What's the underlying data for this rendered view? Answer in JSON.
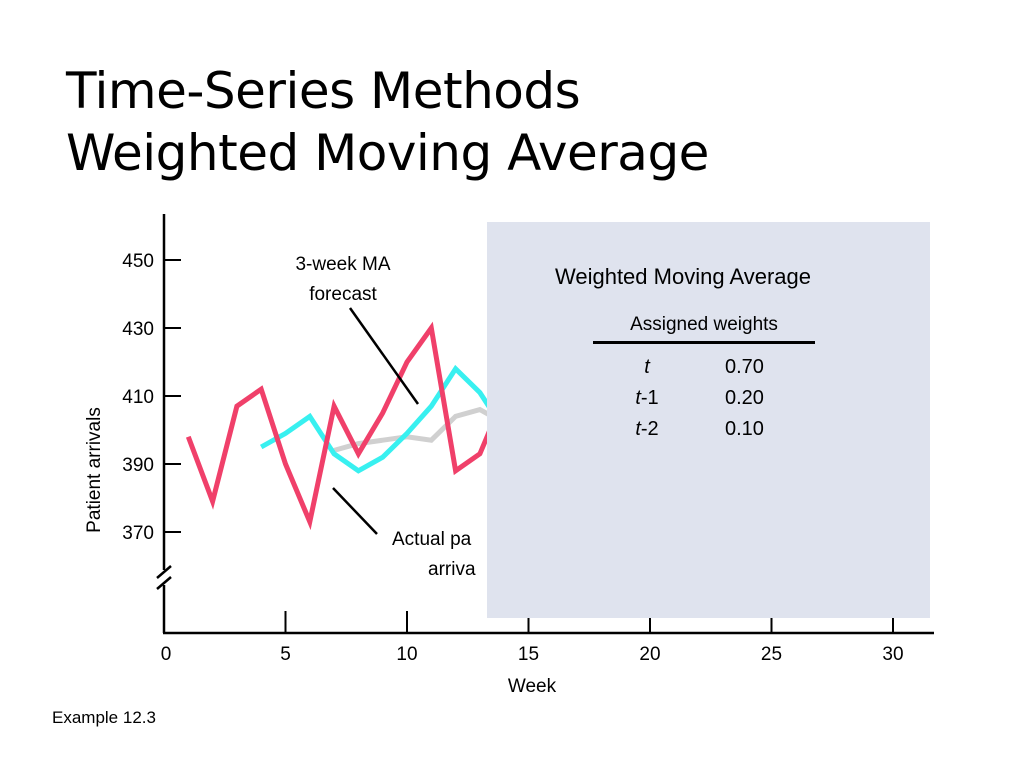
{
  "title": {
    "line1": "Time-Series Methods",
    "line2": "Weighted Moving Average"
  },
  "footnote": "Example 12.3",
  "colors": {
    "actual": "#f0406a",
    "ma_forecast": "#38f0f0",
    "wma_forecast": "#d0d0d0",
    "panel": "#dfe3ee"
  },
  "panel": {
    "title": "Weighted Moving Average",
    "weights_header": "Assigned weights",
    "rows": [
      {
        "period_var": "t",
        "period_suffix": "",
        "weight": "0.70"
      },
      {
        "period_var": "t",
        "period_suffix": "-1",
        "weight": "0.20"
      },
      {
        "period_var": "t",
        "period_suffix": "-2",
        "weight": "0.10"
      }
    ]
  },
  "chart_data": {
    "type": "line",
    "xlabel": "Week",
    "ylabel": "Patient arrivals",
    "xlim": [
      0,
      32
    ],
    "ylim": [
      360,
      460
    ],
    "axis_break": true,
    "x_ticks": [
      0,
      5,
      10,
      15,
      20,
      25,
      30
    ],
    "y_ticks": [
      370,
      390,
      410,
      430,
      450
    ],
    "annotations": [
      {
        "text": [
          "3-week MA",
          "forecast"
        ]
      },
      {
        "text": [
          "Actual pa",
          "arriva"
        ]
      }
    ],
    "series": [
      {
        "key": "actual",
        "x": [
          1,
          2,
          3,
          4,
          5,
          6,
          7,
          8,
          9,
          10,
          11,
          12,
          13,
          14
        ],
        "y": [
          398,
          379,
          407,
          412,
          390,
          373,
          407,
          393,
          405,
          420,
          430,
          388,
          393,
          410
        ]
      },
      {
        "key": "ma_forecast",
        "x": [
          4,
          5,
          6,
          7,
          8,
          9,
          10,
          11,
          12,
          13,
          14
        ],
        "y": [
          395,
          399,
          404,
          393,
          388,
          392,
          399,
          407,
          418,
          411,
          400
        ]
      },
      {
        "key": "wma_forecast",
        "x": [
          7,
          8,
          9,
          10,
          11,
          12,
          13,
          14
        ],
        "y": [
          394,
          396,
          397,
          398,
          397,
          404,
          406,
          402
        ]
      }
    ]
  }
}
